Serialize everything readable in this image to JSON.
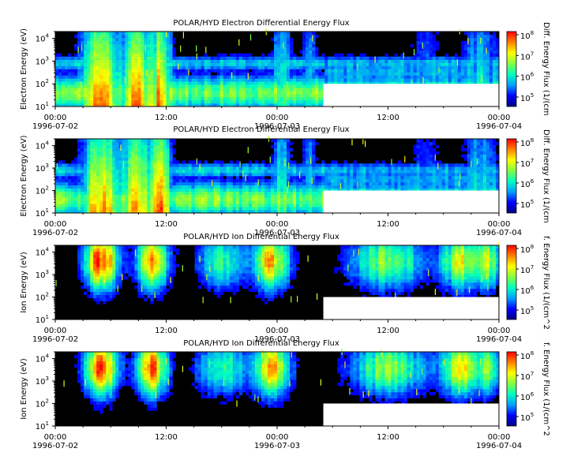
{
  "colors": {
    "colorbar_stops": [
      "#000080",
      "#0000ff",
      "#00a0ff",
      "#00ffc0",
      "#80ff40",
      "#ffff00",
      "#ff8000",
      "#ff0000"
    ],
    "background": "#000000",
    "no_data": "#ffffff"
  },
  "chart_data": [
    {
      "type": "heatmap",
      "title": "POLAR/HYD  Electron Differential Energy Flux",
      "ylabel": "Electron Energy (eV)",
      "colorbar_label": "Diff. Energy Flux (1/(cm",
      "y_scale": "log",
      "ylim": [
        10,
        20000
      ],
      "y_ticks": [
        {
          "value": 10,
          "base": "10",
          "exp": "1"
        },
        {
          "value": 100,
          "base": "10",
          "exp": "2"
        },
        {
          "value": 1000,
          "base": "10",
          "exp": "3"
        },
        {
          "value": 10000,
          "base": "10",
          "exp": "4"
        }
      ],
      "x_ticks": [
        {
          "time": "00:00",
          "date": "1996-07-02"
        },
        {
          "time": "12:00",
          "date": ""
        },
        {
          "time": "00:00",
          "date": "1996-07-03"
        },
        {
          "time": "12:00",
          "date": ""
        },
        {
          "time": "00:00",
          "date": "1996-07-04"
        }
      ],
      "xlim": [
        "1996-07-02 00:00",
        "1996-07-04 00:00"
      ],
      "colorbar_ticks": [
        {
          "base": "10",
          "exp": "5"
        },
        {
          "base": "10",
          "exp": "6"
        },
        {
          "base": "10",
          "exp": "7"
        },
        {
          "base": "10",
          "exp": "8"
        }
      ],
      "colorbar_range": [
        100000,
        100000000
      ],
      "data_gap": {
        "start": "1996-07-03 05:00",
        "end": "1996-07-04 00:00",
        "below_energy": 100
      }
    },
    {
      "type": "heatmap",
      "title": "POLAR/HYD  Electron Differential Energy Flux",
      "ylabel": "Electron Energy (eV)",
      "colorbar_label": "Diff. Energy Flux (1/(cm",
      "y_scale": "log",
      "ylim": [
        10,
        20000
      ],
      "y_ticks": [
        {
          "value": 10,
          "base": "10",
          "exp": "1"
        },
        {
          "value": 100,
          "base": "10",
          "exp": "2"
        },
        {
          "value": 1000,
          "base": "10",
          "exp": "3"
        },
        {
          "value": 10000,
          "base": "10",
          "exp": "4"
        }
      ],
      "x_ticks": [
        {
          "time": "00:00",
          "date": "1996-07-02"
        },
        {
          "time": "12:00",
          "date": ""
        },
        {
          "time": "00:00",
          "date": "1996-07-03"
        },
        {
          "time": "12:00",
          "date": ""
        },
        {
          "time": "00:00",
          "date": "1996-07-04"
        }
      ],
      "xlim": [
        "1996-07-02 00:00",
        "1996-07-04 00:00"
      ],
      "colorbar_ticks": [
        {
          "base": "10",
          "exp": "5"
        },
        {
          "base": "10",
          "exp": "6"
        },
        {
          "base": "10",
          "exp": "7"
        },
        {
          "base": "10",
          "exp": "8"
        }
      ],
      "colorbar_range": [
        100000,
        100000000
      ],
      "data_gap": {
        "start": "1996-07-03 05:00",
        "end": "1996-07-04 00:00",
        "below_energy": 100
      }
    },
    {
      "type": "heatmap",
      "title": "POLAR/HYD  Ion Differential Energy Flux",
      "ylabel": "Ion Energy (eV)",
      "colorbar_label": "f. Energy Flux (1/(cm^2",
      "y_scale": "log",
      "ylim": [
        10,
        20000
      ],
      "y_ticks": [
        {
          "value": 10,
          "base": "10",
          "exp": "1"
        },
        {
          "value": 100,
          "base": "10",
          "exp": "2"
        },
        {
          "value": 1000,
          "base": "10",
          "exp": "3"
        },
        {
          "value": 10000,
          "base": "10",
          "exp": "4"
        }
      ],
      "x_ticks": [
        {
          "time": "00:00",
          "date": "1996-07-02"
        },
        {
          "time": "12:00",
          "date": ""
        },
        {
          "time": "00:00",
          "date": "1996-07-03"
        },
        {
          "time": "12:00",
          "date": ""
        },
        {
          "time": "00:00",
          "date": "1996-07-04"
        }
      ],
      "xlim": [
        "1996-07-02 00:00",
        "1996-07-04 00:00"
      ],
      "colorbar_ticks": [
        {
          "base": "10",
          "exp": "5"
        },
        {
          "base": "10",
          "exp": "6"
        },
        {
          "base": "10",
          "exp": "7"
        },
        {
          "base": "10",
          "exp": "8"
        }
      ],
      "colorbar_range": [
        100000,
        100000000
      ],
      "data_gap": {
        "start": "1996-07-03 05:00",
        "end": "1996-07-04 00:00",
        "below_energy": 100
      }
    },
    {
      "type": "heatmap",
      "title": "POLAR/HYD  Ion Differential Energy Flux",
      "ylabel": "Ion Energy (eV)",
      "colorbar_label": "f. Energy Flux (1/(cm^2",
      "y_scale": "log",
      "ylim": [
        10,
        20000
      ],
      "y_ticks": [
        {
          "value": 10,
          "base": "10",
          "exp": "1"
        },
        {
          "value": 100,
          "base": "10",
          "exp": "2"
        },
        {
          "value": 1000,
          "base": "10",
          "exp": "3"
        },
        {
          "value": 10000,
          "base": "10",
          "exp": "4"
        }
      ],
      "x_ticks": [
        {
          "time": "00:00",
          "date": "1996-07-02"
        },
        {
          "time": "12:00",
          "date": ""
        },
        {
          "time": "00:00",
          "date": "1996-07-03"
        },
        {
          "time": "12:00",
          "date": ""
        },
        {
          "time": "00:00",
          "date": "1996-07-04"
        }
      ],
      "xlim": [
        "1996-07-02 00:00",
        "1996-07-04 00:00"
      ],
      "colorbar_ticks": [
        {
          "base": "10",
          "exp": "5"
        },
        {
          "base": "10",
          "exp": "6"
        },
        {
          "base": "10",
          "exp": "7"
        },
        {
          "base": "10",
          "exp": "8"
        }
      ],
      "colorbar_range": [
        100000,
        100000000
      ],
      "data_gap": {
        "start": "1996-07-03 05:00",
        "end": "1996-07-04 00:00",
        "below_energy": 100
      }
    }
  ]
}
